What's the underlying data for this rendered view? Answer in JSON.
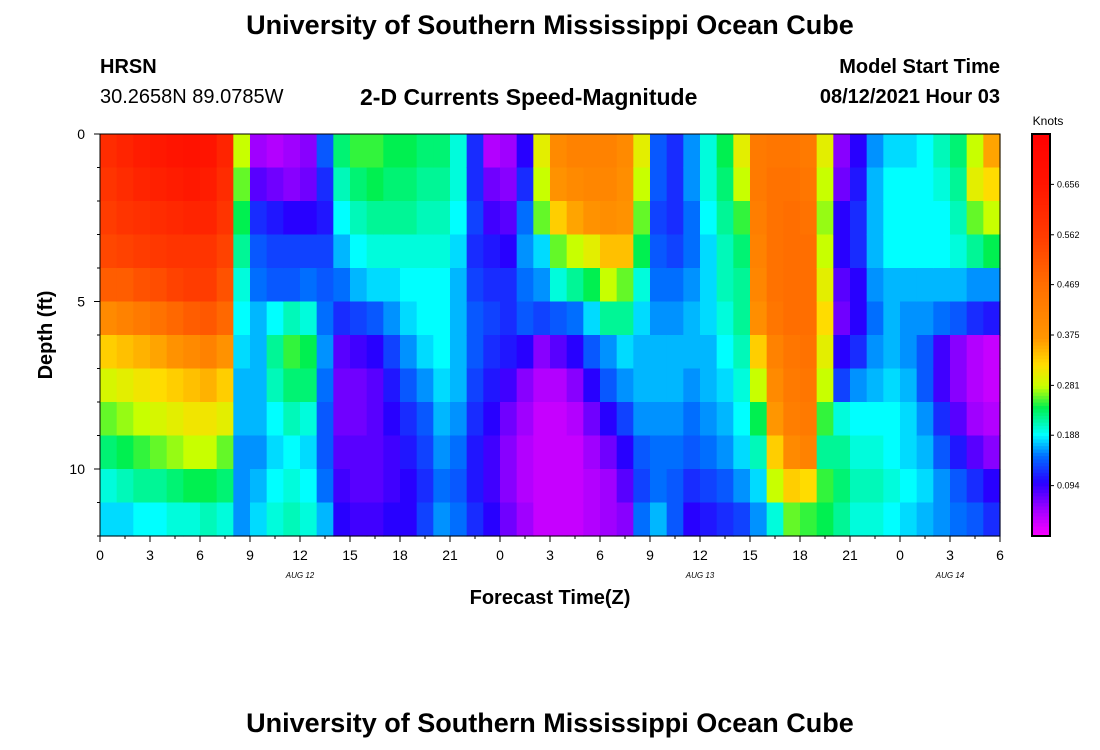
{
  "page": {
    "title_top": "University of Southern Mississippi Ocean Cube",
    "title_bottom": "University of Southern Mississippi Ocean Cube",
    "station": "HRSN",
    "coords": "30.2658N  89.0785W",
    "subtitle": "2-D Currents Speed-Magnitude",
    "model_label": "Model Start Time",
    "model_time": "08/12/2021 Hour 03"
  },
  "chart_data": {
    "type": "heatmap",
    "title": "2-D Currents Speed-Magnitude",
    "xlabel": "Forecast Time(Z)",
    "ylabel": "Depth (ft)",
    "x_range_hours": [
      0,
      54
    ],
    "y_range_ft": [
      0,
      12
    ],
    "x_tick_values": [
      0,
      3,
      6,
      9,
      12,
      15,
      18,
      21,
      24,
      27,
      30,
      33,
      36,
      39,
      42,
      45,
      48,
      51,
      54
    ],
    "x_tick_labels": [
      "0",
      "3",
      "6",
      "9",
      "12",
      "15",
      "18",
      "21",
      "0",
      "3",
      "6",
      "9",
      "12",
      "15",
      "18",
      "21",
      "0",
      "3",
      "6"
    ],
    "y_tick_values": [
      0,
      5,
      10
    ],
    "y_tick_labels": [
      "0",
      "5",
      "10"
    ],
    "date_labels": [
      {
        "hour": 12,
        "text": "AUG 12"
      },
      {
        "hour": 36,
        "text": "AUG 13"
      },
      {
        "hour": 51,
        "text": "AUG 14"
      }
    ],
    "colorbar": {
      "unit": "Knots",
      "min": 0.0,
      "max": 0.75,
      "tick_values": [
        0.094,
        0.188,
        0.281,
        0.375,
        0.469,
        0.562,
        0.656
      ],
      "tick_labels": [
        "0.094",
        "0.188",
        "0.281",
        "0.375",
        "0.469",
        "0.562",
        "0.656"
      ]
    },
    "depth_levels": 12,
    "column_hours": [
      0,
      1,
      2,
      3,
      4,
      5,
      6,
      7,
      8,
      9,
      10,
      11,
      12,
      13,
      14,
      15,
      16,
      17,
      18,
      19,
      20,
      21,
      22,
      23,
      24,
      25,
      26,
      27,
      28,
      29,
      30,
      31,
      32,
      33,
      34,
      35,
      36,
      37,
      38,
      39,
      40,
      41,
      42,
      43,
      44,
      45,
      46,
      47,
      48,
      49,
      50,
      51,
      52,
      53
    ],
    "speed_columns": [
      [
        0.6,
        0.58,
        0.56,
        0.54,
        0.5,
        0.4,
        0.33,
        0.29,
        0.26,
        0.23,
        0.2,
        0.18
      ],
      [
        0.62,
        0.6,
        0.58,
        0.55,
        0.5,
        0.42,
        0.34,
        0.3,
        0.27,
        0.24,
        0.21,
        0.18
      ],
      [
        0.64,
        0.62,
        0.59,
        0.56,
        0.52,
        0.44,
        0.35,
        0.31,
        0.28,
        0.25,
        0.22,
        0.19
      ],
      [
        0.65,
        0.63,
        0.6,
        0.57,
        0.53,
        0.46,
        0.36,
        0.32,
        0.29,
        0.26,
        0.22,
        0.19
      ],
      [
        0.66,
        0.64,
        0.61,
        0.58,
        0.55,
        0.48,
        0.38,
        0.33,
        0.3,
        0.27,
        0.23,
        0.2
      ],
      [
        0.67,
        0.65,
        0.62,
        0.58,
        0.56,
        0.5,
        0.4,
        0.34,
        0.31,
        0.28,
        0.24,
        0.2
      ],
      [
        0.66,
        0.64,
        0.62,
        0.58,
        0.56,
        0.51,
        0.42,
        0.35,
        0.31,
        0.28,
        0.24,
        0.21
      ],
      [
        0.62,
        0.6,
        0.58,
        0.55,
        0.52,
        0.48,
        0.38,
        0.33,
        0.3,
        0.26,
        0.23,
        0.2
      ],
      [
        0.28,
        0.26,
        0.24,
        0.22,
        0.2,
        0.19,
        0.18,
        0.17,
        0.17,
        0.16,
        0.16,
        0.16
      ],
      [
        0.05,
        0.08,
        0.12,
        0.14,
        0.15,
        0.17,
        0.17,
        0.17,
        0.17,
        0.16,
        0.17,
        0.18
      ],
      [
        0.04,
        0.07,
        0.11,
        0.13,
        0.14,
        0.19,
        0.22,
        0.21,
        0.19,
        0.18,
        0.19,
        0.2
      ],
      [
        0.05,
        0.06,
        0.1,
        0.13,
        0.14,
        0.21,
        0.25,
        0.23,
        0.21,
        0.19,
        0.2,
        0.21
      ],
      [
        0.06,
        0.07,
        0.1,
        0.13,
        0.15,
        0.2,
        0.24,
        0.23,
        0.2,
        0.18,
        0.19,
        0.2
      ],
      [
        0.14,
        0.12,
        0.11,
        0.13,
        0.14,
        0.15,
        0.16,
        0.15,
        0.14,
        0.14,
        0.15,
        0.17
      ],
      [
        0.23,
        0.21,
        0.19,
        0.17,
        0.15,
        0.12,
        0.08,
        0.07,
        0.07,
        0.08,
        0.09,
        0.1
      ],
      [
        0.25,
        0.23,
        0.21,
        0.19,
        0.17,
        0.13,
        0.09,
        0.07,
        0.07,
        0.08,
        0.08,
        0.09
      ],
      [
        0.25,
        0.24,
        0.22,
        0.2,
        0.18,
        0.14,
        0.1,
        0.08,
        0.08,
        0.08,
        0.08,
        0.09
      ],
      [
        0.24,
        0.23,
        0.22,
        0.2,
        0.18,
        0.16,
        0.13,
        0.11,
        0.1,
        0.09,
        0.09,
        0.1
      ],
      [
        0.24,
        0.23,
        0.22,
        0.2,
        0.19,
        0.18,
        0.16,
        0.14,
        0.12,
        0.11,
        0.1,
        0.1
      ],
      [
        0.23,
        0.22,
        0.21,
        0.2,
        0.19,
        0.19,
        0.18,
        0.16,
        0.14,
        0.13,
        0.12,
        0.13
      ],
      [
        0.23,
        0.22,
        0.21,
        0.2,
        0.19,
        0.19,
        0.19,
        0.18,
        0.17,
        0.16,
        0.15,
        0.16
      ],
      [
        0.2,
        0.2,
        0.19,
        0.18,
        0.17,
        0.17,
        0.17,
        0.17,
        0.16,
        0.15,
        0.14,
        0.15
      ],
      [
        0.12,
        0.12,
        0.13,
        0.12,
        0.13,
        0.14,
        0.14,
        0.13,
        0.12,
        0.11,
        0.11,
        0.12
      ],
      [
        0.04,
        0.07,
        0.09,
        0.11,
        0.12,
        0.13,
        0.12,
        0.11,
        0.1,
        0.09,
        0.09,
        0.1
      ],
      [
        0.05,
        0.06,
        0.08,
        0.1,
        0.12,
        0.12,
        0.11,
        0.09,
        0.07,
        0.06,
        0.06,
        0.07
      ],
      [
        0.1,
        0.12,
        0.15,
        0.16,
        0.15,
        0.14,
        0.1,
        0.06,
        0.05,
        0.04,
        0.04,
        0.05
      ],
      [
        0.3,
        0.28,
        0.26,
        0.18,
        0.16,
        0.13,
        0.06,
        0.04,
        0.03,
        0.03,
        0.03,
        0.03
      ],
      [
        0.4,
        0.38,
        0.33,
        0.26,
        0.2,
        0.14,
        0.08,
        0.04,
        0.03,
        0.03,
        0.03,
        0.03
      ],
      [
        0.42,
        0.4,
        0.36,
        0.28,
        0.22,
        0.15,
        0.1,
        0.06,
        0.04,
        0.03,
        0.03,
        0.03
      ],
      [
        0.42,
        0.41,
        0.38,
        0.3,
        0.24,
        0.18,
        0.14,
        0.1,
        0.07,
        0.05,
        0.04,
        0.04
      ],
      [
        0.42,
        0.41,
        0.39,
        0.34,
        0.28,
        0.22,
        0.16,
        0.14,
        0.1,
        0.07,
        0.05,
        0.05
      ],
      [
        0.4,
        0.39,
        0.38,
        0.34,
        0.26,
        0.22,
        0.18,
        0.16,
        0.13,
        0.1,
        0.08,
        0.06
      ],
      [
        0.3,
        0.28,
        0.26,
        0.24,
        0.2,
        0.18,
        0.17,
        0.17,
        0.16,
        0.14,
        0.13,
        0.15
      ],
      [
        0.14,
        0.14,
        0.13,
        0.14,
        0.15,
        0.16,
        0.17,
        0.17,
        0.16,
        0.15,
        0.15,
        0.17
      ],
      [
        0.12,
        0.12,
        0.12,
        0.13,
        0.15,
        0.16,
        0.17,
        0.17,
        0.16,
        0.15,
        0.14,
        0.14
      ],
      [
        0.16,
        0.16,
        0.15,
        0.15,
        0.16,
        0.17,
        0.17,
        0.16,
        0.15,
        0.14,
        0.12,
        0.1
      ],
      [
        0.2,
        0.2,
        0.19,
        0.18,
        0.18,
        0.18,
        0.17,
        0.17,
        0.16,
        0.15,
        0.13,
        0.11
      ],
      [
        0.24,
        0.23,
        0.22,
        0.21,
        0.21,
        0.2,
        0.19,
        0.18,
        0.17,
        0.16,
        0.14,
        0.12
      ],
      [
        0.3,
        0.28,
        0.25,
        0.23,
        0.22,
        0.22,
        0.21,
        0.2,
        0.19,
        0.18,
        0.16,
        0.13
      ],
      [
        0.44,
        0.44,
        0.43,
        0.42,
        0.41,
        0.39,
        0.33,
        0.28,
        0.24,
        0.21,
        0.18,
        0.16
      ],
      [
        0.45,
        0.46,
        0.46,
        0.46,
        0.46,
        0.45,
        0.42,
        0.4,
        0.37,
        0.33,
        0.28,
        0.2
      ],
      [
        0.45,
        0.46,
        0.47,
        0.47,
        0.47,
        0.47,
        0.45,
        0.44,
        0.43,
        0.4,
        0.33,
        0.26
      ],
      [
        0.44,
        0.45,
        0.46,
        0.47,
        0.47,
        0.47,
        0.46,
        0.45,
        0.44,
        0.42,
        0.32,
        0.25
      ],
      [
        0.3,
        0.28,
        0.27,
        0.28,
        0.3,
        0.32,
        0.3,
        0.28,
        0.25,
        0.22,
        0.25,
        0.24
      ],
      [
        0.06,
        0.07,
        0.1,
        0.1,
        0.08,
        0.07,
        0.1,
        0.13,
        0.2,
        0.22,
        0.23,
        0.22
      ],
      [
        0.1,
        0.11,
        0.12,
        0.12,
        0.1,
        0.1,
        0.12,
        0.16,
        0.19,
        0.2,
        0.21,
        0.2
      ],
      [
        0.16,
        0.17,
        0.17,
        0.17,
        0.16,
        0.15,
        0.16,
        0.17,
        0.19,
        0.2,
        0.21,
        0.2
      ],
      [
        0.18,
        0.19,
        0.19,
        0.19,
        0.17,
        0.17,
        0.17,
        0.18,
        0.19,
        0.19,
        0.2,
        0.19
      ],
      [
        0.18,
        0.19,
        0.19,
        0.19,
        0.17,
        0.16,
        0.16,
        0.17,
        0.18,
        0.18,
        0.19,
        0.18
      ],
      [
        0.19,
        0.19,
        0.19,
        0.19,
        0.17,
        0.16,
        0.14,
        0.14,
        0.16,
        0.17,
        0.18,
        0.17
      ],
      [
        0.21,
        0.2,
        0.19,
        0.19,
        0.17,
        0.15,
        0.09,
        0.09,
        0.12,
        0.14,
        0.16,
        0.16
      ],
      [
        0.23,
        0.22,
        0.21,
        0.2,
        0.17,
        0.14,
        0.06,
        0.06,
        0.08,
        0.11,
        0.14,
        0.15
      ],
      [
        0.28,
        0.3,
        0.26,
        0.22,
        0.16,
        0.12,
        0.04,
        0.04,
        0.05,
        0.08,
        0.12,
        0.14
      ],
      [
        0.36,
        0.32,
        0.28,
        0.24,
        0.16,
        0.11,
        0.03,
        0.03,
        0.04,
        0.06,
        0.1,
        0.12
      ]
    ]
  }
}
